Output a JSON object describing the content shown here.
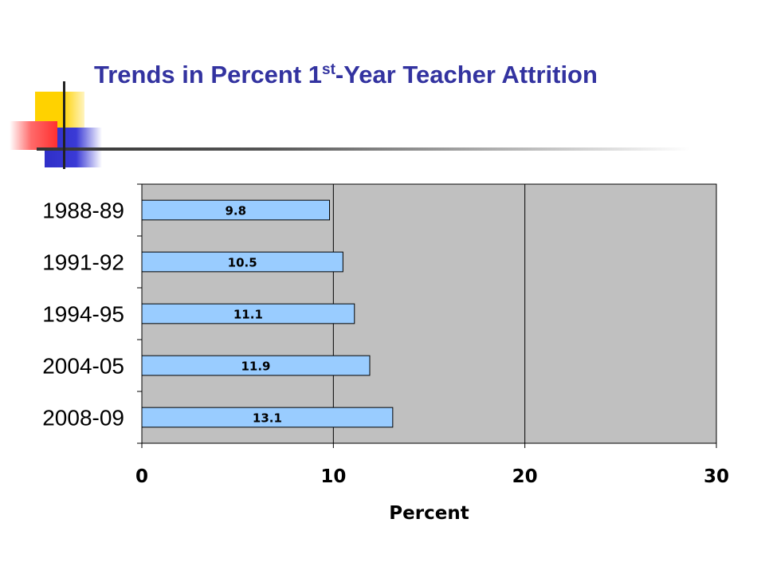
{
  "title": {
    "prefix": "Trends in Percent 1",
    "superscript": "st",
    "suffix": "-Year Teacher Attrition"
  },
  "chart_data": {
    "type": "bar",
    "orientation": "horizontal",
    "categories": [
      "1988-89",
      "1991-92",
      "1994-95",
      "2004-05",
      "2008-09"
    ],
    "values": [
      9.8,
      10.5,
      11.1,
      11.9,
      13.1
    ],
    "data_labels": [
      "9.8",
      "10.5",
      "11.1",
      "11.9",
      "13.1"
    ],
    "xlabel": "Percent",
    "xlim": [
      0,
      30
    ],
    "xticks": [
      0,
      10,
      20,
      30
    ],
    "grid": "vertical",
    "legend": "none",
    "colors": {
      "bar": "#99ccff",
      "plot_background": "#c0c0c0",
      "gridline": "#000000"
    }
  }
}
